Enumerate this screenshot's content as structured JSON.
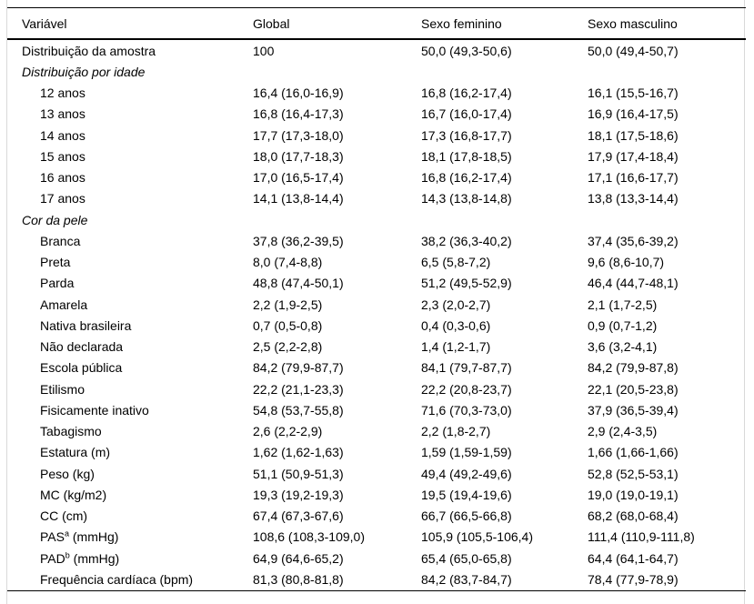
{
  "table": {
    "columns": [
      "Variável",
      "Global",
      "Sexo feminino",
      "Sexo masculino"
    ],
    "rows": [
      {
        "label": "Distribuição da amostra",
        "global": "100",
        "feminino": "50,0 (49,3-50,6)",
        "masculino": "50,0 (49,4-50,7)"
      },
      {
        "label": "Distribuição por idade",
        "italic": true,
        "global": "",
        "feminino": "",
        "masculino": ""
      },
      {
        "label": "12 anos",
        "indent": true,
        "global": "16,4 (16,0-16,9)",
        "feminino": "16,8 (16,2-17,4)",
        "masculino": "16,1 (15,5-16,7)"
      },
      {
        "label": "13 anos",
        "indent": true,
        "global": "16,8 (16,4-17,3)",
        "feminino": "16,7 (16,0-17,4)",
        "masculino": "16,9 (16,4-17,5)"
      },
      {
        "label": "14 anos",
        "indent": true,
        "global": "17,7 (17,3-18,0)",
        "feminino": "17,3 (16,8-17,7)",
        "masculino": "18,1 (17,5-18,6)"
      },
      {
        "label": "15 anos",
        "indent": true,
        "global": "18,0 (17,7-18,3)",
        "feminino": "18,1 (17,8-18,5)",
        "masculino": "17,9 (17,4-18,4)"
      },
      {
        "label": "16 anos",
        "indent": true,
        "global": "17,0 (16,5-17,4)",
        "feminino": "16,8 (16,2-17,4)",
        "masculino": "17,1 (16,6-17,7)"
      },
      {
        "label": "17 anos",
        "indent": true,
        "global": "14,1 (13,8-14,4)",
        "feminino": "14,3 (13,8-14,8)",
        "masculino": "13,8 (13,3-14,4)"
      },
      {
        "label": "Cor da pele",
        "italic": true,
        "global": "",
        "feminino": "",
        "masculino": ""
      },
      {
        "label": "Branca",
        "indent": true,
        "global": "37,8 (36,2-39,5)",
        "feminino": "38,2 (36,3-40,2)",
        "masculino": "37,4 (35,6-39,2)"
      },
      {
        "label": "Preta",
        "indent": true,
        "global": "8,0 (7,4-8,8)",
        "feminino": "6,5 (5,8-7,2)",
        "masculino": "9,6 (8,6-10,7)"
      },
      {
        "label": "Parda",
        "indent": true,
        "global": "48,8 (47,4-50,1)",
        "feminino": "51,2 (49,5-52,9)",
        "masculino": "46,4 (44,7-48,1)"
      },
      {
        "label": "Amarela",
        "indent": true,
        "global": "2,2 (1,9-2,5)",
        "feminino": "2,3 (2,0-2,7)",
        "masculino": "2,1 (1,7-2,5)"
      },
      {
        "label": "Nativa brasileira",
        "indent": true,
        "global": "0,7 (0,5-0,8)",
        "feminino": "0,4 (0,3-0,6)",
        "masculino": "0,9 (0,7-1,2)"
      },
      {
        "label": "Não declarada",
        "indent": true,
        "global": "2,5 (2,2-2,8)",
        "feminino": "1,4 (1,2-1,7)",
        "masculino": "3,6 (3,2-4,1)"
      },
      {
        "label": "Escola pública",
        "indent": true,
        "global": "84,2 (79,9-87,7)",
        "feminino": "84,1 (79,7-87,7)",
        "masculino": "84,2 (79,9-87,8)"
      },
      {
        "label": "Etilismo",
        "indent": true,
        "global": "22,2 (21,1-23,3)",
        "feminino": "22,2 (20,8-23,7)",
        "masculino": "22,1 (20,5-23,8)"
      },
      {
        "label": "Fisicamente inativo",
        "indent": true,
        "global": "54,8 (53,7-55,8)",
        "feminino": "71,6 (70,3-73,0)",
        "masculino": "37,9 (36,5-39,4)"
      },
      {
        "label": "Tabagismo",
        "indent": true,
        "global": "2,6 (2,2-2,9)",
        "feminino": "2,2 (1,8-2,7)",
        "masculino": "2,9 (2,4-3,5)"
      },
      {
        "label": "Estatura (m)",
        "indent": true,
        "global": "1,62 (1,62-1,63)",
        "feminino": "1,59 (1,59-1,59)",
        "masculino": "1,66 (1,66-1,66)"
      },
      {
        "label": "Peso (kg)",
        "indent": true,
        "global": "51,1 (50,9-51,3)",
        "feminino": "49,4 (49,2-49,6)",
        "masculino": "52,8 (52,5-53,1)"
      },
      {
        "label": "MC (kg/m2)",
        "indent": true,
        "global": "19,3 (19,2-19,3)",
        "feminino": "19,5 (19,4-19,6)",
        "masculino": "19,0 (19,0-19,1)"
      },
      {
        "label": "CC (cm)",
        "indent": true,
        "global": "67,4 (67,3-67,6)",
        "feminino": "66,7 (66,5-66,8)",
        "masculino": "68,2 (68,0-68,4)"
      },
      {
        "label": "PAS",
        "sup": "a",
        "suffix": " (mmHg)",
        "indent": true,
        "global": "108,6 (108,3-109,0)",
        "feminino": "105,9 (105,5-106,4)",
        "masculino": "111,4 (110,9-111,8)"
      },
      {
        "label": "PAD",
        "sup": "b",
        "suffix": " (mmHg)",
        "indent": true,
        "global": "64,9 (64,6-65,2)",
        "feminino": "65,4 (65,0-65,8)",
        "masculino": "64,4 (64,1-64,7)"
      },
      {
        "label": "Frequência cardíaca (bpm)",
        "indent": true,
        "global": "81,3 (80,8-81,8)",
        "feminino": "84,2 (83,7-84,7)",
        "masculino": "78,4 (77,9-78,9)"
      }
    ]
  }
}
